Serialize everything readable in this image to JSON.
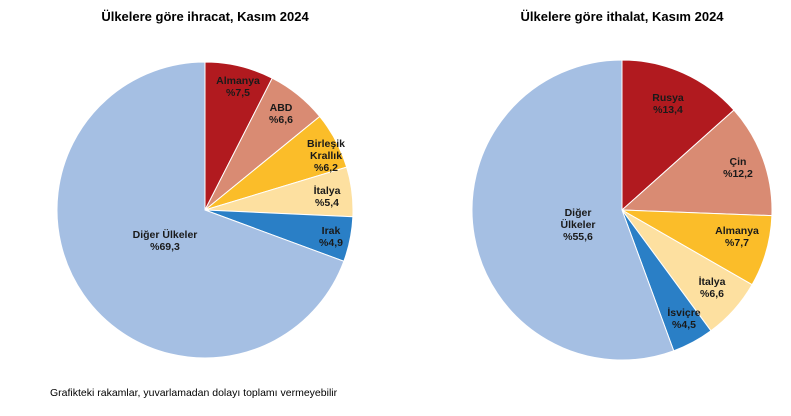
{
  "chart_data": [
    {
      "type": "pie",
      "title": "Ülkelere göre ihracat, Kasım 2024",
      "slices": [
        {
          "label": [
            "Almanya"
          ],
          "value_label": "%7,5",
          "value": 7.5,
          "color": "#b11a1f"
        },
        {
          "label": [
            "ABD"
          ],
          "value_label": "%6,6",
          "value": 6.6,
          "color": "#d98b73"
        },
        {
          "label": [
            "Birleşik",
            "Krallık"
          ],
          "value_label": "%6,2",
          "value": 6.2,
          "color": "#fbbd29"
        },
        {
          "label": [
            "İtalya"
          ],
          "value_label": "%5,4",
          "value": 5.4,
          "color": "#fde0a0"
        },
        {
          "label": [
            "Irak"
          ],
          "value_label": "%4,9",
          "value": 4.9,
          "color": "#2a7fc6"
        },
        {
          "label": [
            "Diğer Ülkeler"
          ],
          "value_label": "%69,3",
          "value": 69.3,
          "color": "#a5bfe3"
        }
      ]
    },
    {
      "type": "pie",
      "title": "Ülkelere göre ithalat, Kasım 2024",
      "slices": [
        {
          "label": [
            "Rusya"
          ],
          "value_label": "%13,4",
          "value": 13.4,
          "color": "#b11a1f"
        },
        {
          "label": [
            "Çin"
          ],
          "value_label": "%12,2",
          "value": 12.2,
          "color": "#d98b73"
        },
        {
          "label": [
            "Almanya"
          ],
          "value_label": "%7,7",
          "value": 7.7,
          "color": "#fbbd29"
        },
        {
          "label": [
            "İtalya"
          ],
          "value_label": "%6,6",
          "value": 6.6,
          "color": "#fde0a0"
        },
        {
          "label": [
            "İsviçre"
          ],
          "value_label": "%4,5",
          "value": 4.5,
          "color": "#2a7fc6"
        },
        {
          "label": [
            "Diğer",
            "Ülkeler"
          ],
          "value_label": "%55,6",
          "value": 55.6,
          "color": "#a5bfe3"
        }
      ]
    }
  ],
  "footnote": "Grafikteki rakamlar, yuvarlamadan dolayı toplamı vermeyebilir"
}
